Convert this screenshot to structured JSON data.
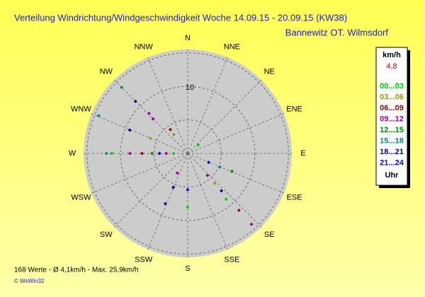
{
  "chart_data": {
    "type": "polar-scatter",
    "title": "Verteilung Windrichtung/Windgeschwindigkeit  Woche 14.09.15 - 20.09.15 (KW38)",
    "subtitle": "Bannewitz OT. Wilmsdorf",
    "directions": [
      "N",
      "NNE",
      "NE",
      "ENE",
      "E",
      "ESE",
      "SE",
      "SSE",
      "S",
      "SSW",
      "SW",
      "WSW",
      "W",
      "WNW",
      "NW",
      "NNW"
    ],
    "rlim": [
      0,
      15.5
    ],
    "rticks": [
      10
    ],
    "rgrid": [
      5,
      10,
      15
    ],
    "legend": {
      "title": "km/h",
      "current": "4,8",
      "footer": "Uhr"
    },
    "series": [
      {
        "name": "00...03",
        "color": "#00cc00",
        "theta": [
          270,
          140,
          180,
          51,
          270
        ],
        "r": [
          11.3,
          8.9,
          8.0,
          2.0,
          2.1
        ]
      },
      {
        "name": "03...06",
        "color": "#999900",
        "theta": [
          292,
          138,
          324
        ],
        "r": [
          6.0,
          6.0,
          3.5
        ]
      },
      {
        "name": "06...09",
        "color": "#990000",
        "theta": [
          270,
          138,
          324
        ],
        "r": [
          6.8,
          11.4,
          4.4
        ]
      },
      {
        "name": "09...12",
        "color": "#990099",
        "theta": [
          316,
          315,
          270,
          270,
          138,
          138,
          208
        ],
        "r": [
          8.3,
          7.3,
          8.6,
          3.2,
          14.2,
          4.4,
          3.3
        ]
      },
      {
        "name": "12...15",
        "color": "#008800",
        "theta": [
          270,
          112
        ],
        "r": [
          5.3,
          7.1
        ]
      },
      {
        "name": "15...18",
        "color": "#008888",
        "theta": [
          315,
          293,
          270,
          113
        ],
        "r": [
          13.9,
          14.4,
          12.1,
          5.2
        ]
      },
      {
        "name": "18...21",
        "color": "#000099",
        "theta": [
          315,
          292,
          138,
          204,
          203
        ],
        "r": [
          11.0,
          9.3,
          7.5,
          8.2,
          5.5
        ]
      },
      {
        "name": "21...24",
        "color": "#0000ff",
        "theta": [
          270,
          113,
          180
        ],
        "r": [
          4.2,
          3.4,
          5.4
        ]
      }
    ]
  },
  "footer": {
    "stats": "168 Werte   -   Ø 4,1km/h   -   Max. 25,9km/h",
    "copyright": "© WsWin32"
  }
}
